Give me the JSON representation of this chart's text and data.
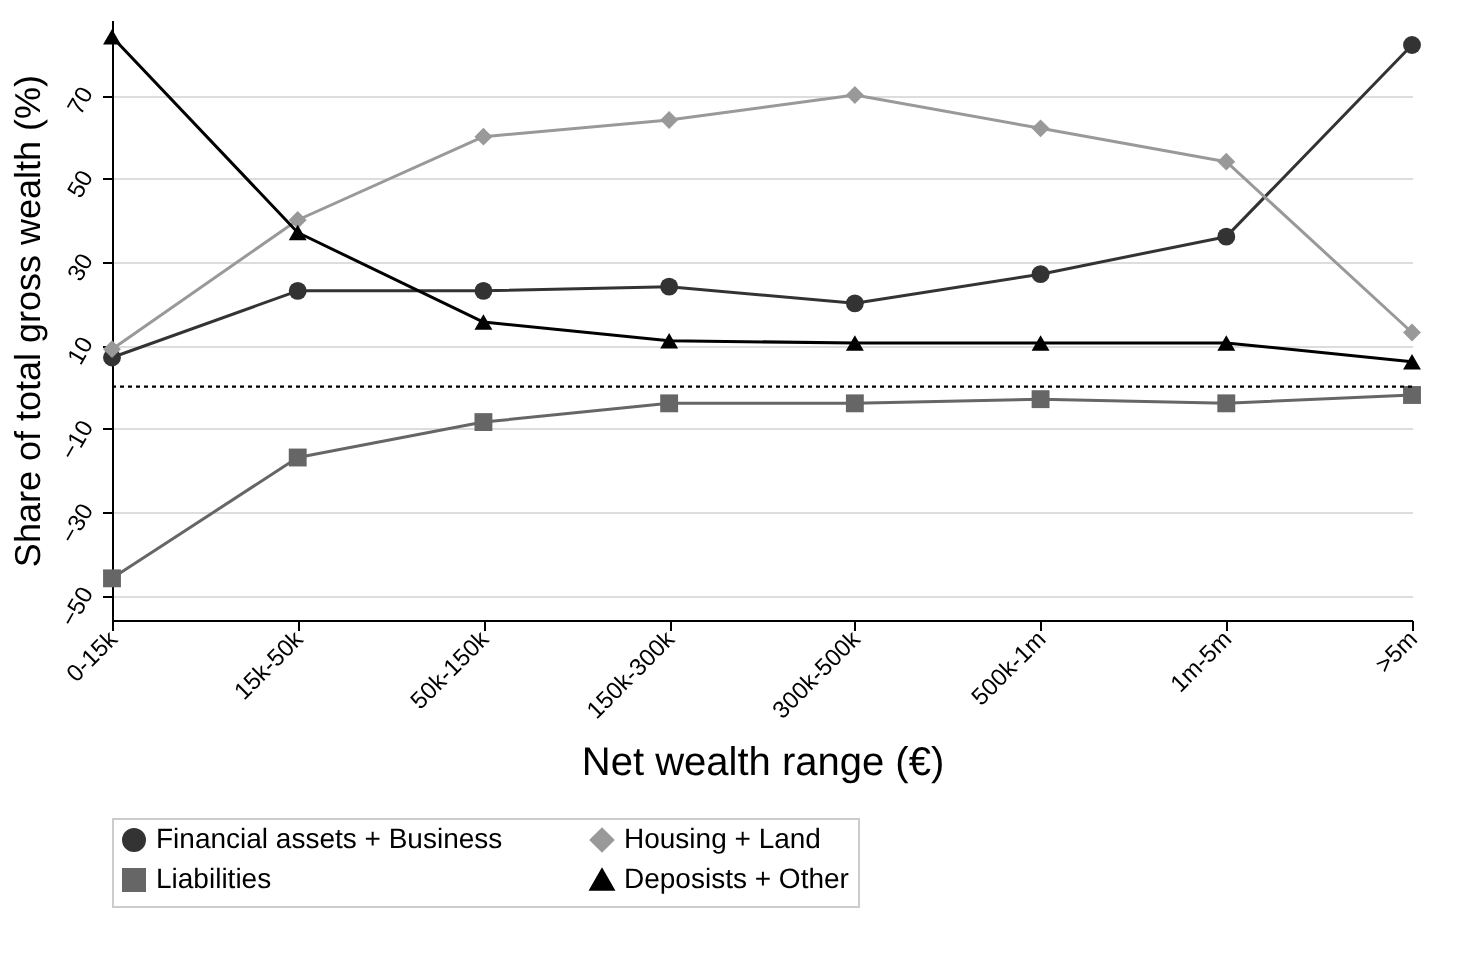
{
  "chart_data": {
    "type": "line",
    "xlabel": "Net wealth range (€)",
    "ylabel": "Share of total gross wealth (%)",
    "categories": [
      "0-15k",
      "15k-50k",
      "50k-150k",
      "150k-300k",
      "300k-500k",
      "500k-1m",
      "1m-5m",
      ">5m"
    ],
    "series": [
      {
        "name": "Financial assets + Business",
        "color": "#333333",
        "marker": "circle",
        "values": [
          7,
          23,
          23,
          24,
          20,
          27,
          36,
          82
        ]
      },
      {
        "name": "Housing + Land",
        "color": "#999999",
        "marker": "diamond",
        "values": [
          9,
          40,
          60,
          64,
          70,
          62,
          54,
          13
        ]
      },
      {
        "name": "Liabilities",
        "color": "#666666",
        "marker": "square",
        "values": [
          -46,
          -17,
          -8.5,
          -4,
          -4,
          -3,
          -4,
          -2
        ]
      },
      {
        "name": "Deposists + Other",
        "color": "#000000",
        "marker": "triangle",
        "values": [
          84,
          37,
          15.5,
          11,
          10.5,
          10.5,
          10.5,
          6
        ]
      }
    ],
    "ylim": [
      -56,
      88
    ],
    "yticks": [
      -50,
      -30,
      -10,
      10,
      30,
      50,
      70
    ],
    "grid": "y",
    "legend": "bottom",
    "line_style": "solid",
    "ref_lines": [
      {
        "axis": "y",
        "value": 0,
        "line_style": "dotted",
        "color": "#000000"
      }
    ]
  }
}
